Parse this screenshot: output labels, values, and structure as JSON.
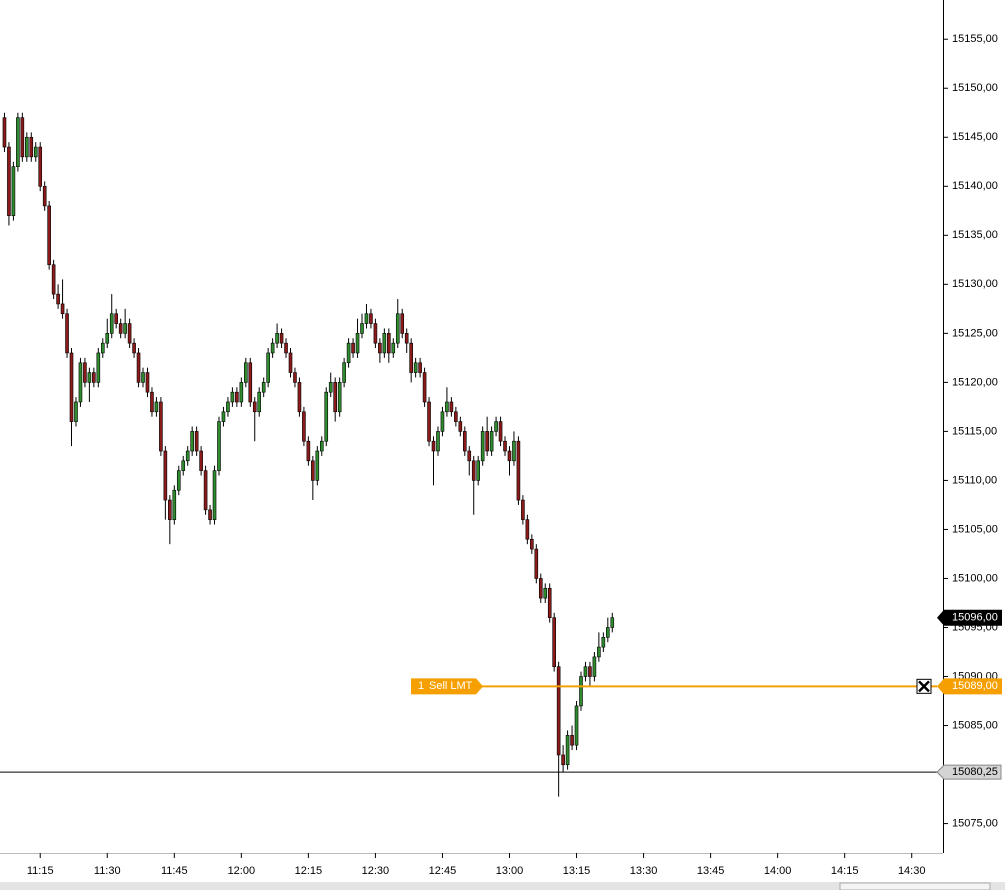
{
  "chart_data": {
    "type": "candlestick",
    "x": [
      "11:07",
      "11:08",
      "11:09",
      "11:10",
      "11:11",
      "11:12",
      "11:13",
      "11:14",
      "11:15",
      "11:16",
      "11:17",
      "11:18",
      "11:19",
      "11:20",
      "11:21",
      "11:22",
      "11:23",
      "11:24",
      "11:25",
      "11:26",
      "11:27",
      "11:28",
      "11:29",
      "11:30",
      "11:31",
      "11:32",
      "11:33",
      "11:34",
      "11:35",
      "11:36",
      "11:37",
      "11:38",
      "11:39",
      "11:40",
      "11:41",
      "11:42",
      "11:43",
      "11:44",
      "11:45",
      "11:46",
      "11:47",
      "11:48",
      "11:49",
      "11:50",
      "11:51",
      "11:52",
      "11:53",
      "11:54",
      "11:55",
      "11:56",
      "11:57",
      "11:58",
      "11:59",
      "12:00",
      "12:01",
      "12:02",
      "12:03",
      "12:04",
      "12:05",
      "12:06",
      "12:07",
      "12:08",
      "12:09",
      "12:10",
      "12:11",
      "12:12",
      "12:13",
      "12:14",
      "12:15",
      "12:16",
      "12:17",
      "12:18",
      "12:19",
      "12:20",
      "12:21",
      "12:22",
      "12:23",
      "12:24",
      "12:25",
      "12:26",
      "12:27",
      "12:28",
      "12:29",
      "12:30",
      "12:31",
      "12:32",
      "12:33",
      "12:34",
      "12:35",
      "12:36",
      "12:37",
      "12:38",
      "12:39",
      "12:40",
      "12:41",
      "12:42",
      "12:43",
      "12:44",
      "12:45",
      "12:46",
      "12:47",
      "12:48",
      "12:49",
      "12:50",
      "12:51",
      "12:52",
      "12:53",
      "12:54",
      "12:55",
      "12:56",
      "12:57",
      "12:58",
      "12:59",
      "13:00",
      "13:01",
      "13:02",
      "13:03",
      "13:04",
      "13:05",
      "13:06",
      "13:07",
      "13:08",
      "13:09",
      "13:10",
      "13:11",
      "13:12",
      "13:13",
      "13:14",
      "13:15",
      "13:16",
      "13:17",
      "13:18",
      "13:19",
      "13:20",
      "13:21",
      "13:22",
      "13:23"
    ],
    "open": [
      15147,
      15144,
      15137,
      15142,
      15147,
      15143,
      15145,
      15143,
      15144,
      15140,
      15138,
      15132,
      15129,
      15128,
      15127,
      15123,
      15116,
      15118,
      15122,
      15120,
      15121,
      15120,
      15123,
      15124,
      15125,
      15127,
      15126,
      15125,
      15126,
      15124,
      15123,
      15120,
      15121,
      15119,
      15117,
      15118,
      15113,
      15108,
      15106,
      15109,
      15111,
      15112,
      15113,
      15115,
      15113,
      15111,
      15107,
      15106,
      15111,
      15116,
      15117,
      15118,
      15119,
      15118,
      15120,
      15122,
      15118,
      15117,
      15119,
      15120,
      15123,
      15124,
      15125,
      15124,
      15123,
      15121,
      15120,
      15117,
      15114,
      15112,
      15110,
      15113,
      15114,
      15119,
      15120,
      15117,
      15120,
      15122,
      15124,
      15123,
      15125,
      15126,
      15127,
      15126,
      15124,
      15123,
      15125,
      15123,
      15124,
      15127,
      15125,
      15124,
      15121,
      15122,
      15121,
      15118,
      15114,
      15113,
      15115,
      15117,
      15118,
      15117,
      15116,
      15115,
      15113,
      15112,
      15110,
      15112,
      15115,
      15113,
      15115,
      15116,
      15114,
      15113,
      15112,
      15114,
      15108,
      15106,
      15104,
      15103,
      15100,
      15098,
      15099,
      15096,
      15091,
      15082,
      15081,
      15084,
      15083,
      15087,
      15090,
      15091,
      15090,
      15092,
      15093,
      15094,
      15095
    ],
    "high": [
      15147.5,
      15144.5,
      15142.5,
      15147.5,
      15147.5,
      15145.5,
      15145.5,
      15144.5,
      15144.5,
      15140.5,
      15138.5,
      15132.5,
      15130,
      15130.5,
      15127.5,
      15123.5,
      15118.5,
      15122.5,
      15122.5,
      15121.5,
      15121.5,
      15123.5,
      15124.5,
      15126.5,
      15129,
      15127.5,
      15126.5,
      15127.5,
      15126.5,
      15124.5,
      15123.5,
      15121.5,
      15121.5,
      15119.5,
      15118.5,
      15118.5,
      15113.5,
      15108.5,
      15109.5,
      15111.5,
      15112.5,
      15113.5,
      15115.5,
      15115.5,
      15113.5,
      15111.5,
      15107.5,
      15111.5,
      15116.5,
      15117.5,
      15118.5,
      15119.5,
      15119.5,
      15120.5,
      15122.5,
      15122.5,
      15118.5,
      15119.5,
      15120.5,
      15123.5,
      15124.5,
      15126,
      15125.5,
      15124.5,
      15123.5,
      15121.5,
      15120.5,
      15117.5,
      15114.5,
      15112.5,
      15113.5,
      15114.5,
      15119.5,
      15121,
      15120.5,
      15120.5,
      15122.5,
      15124.5,
      15124.5,
      15126.5,
      15127,
      15128,
      15127.5,
      15126.5,
      15124.5,
      15125.5,
      15125.5,
      15124.5,
      15128.5,
      15127.5,
      15125.5,
      15124.5,
      15122.5,
      15122.5,
      15121.5,
      15118.5,
      15114.5,
      15115.5,
      15117.5,
      15119.5,
      15118.5,
      15117.5,
      15116.5,
      15115.5,
      15113.5,
      15112.5,
      15112.5,
      15115.5,
      15116.5,
      15115.5,
      15116.5,
      15116.5,
      15114.5,
      15113.5,
      15115,
      15114.5,
      15108.5,
      15106.5,
      15104.5,
      15103.5,
      15100.5,
      15099.5,
      15099.5,
      15096.5,
      15091.5,
      15083,
      15084.5,
      15085,
      15087.5,
      15090.5,
      15091.5,
      15091.5,
      15092.5,
      15094.5,
      15094.5,
      15096,
      15096.5
    ],
    "low": [
      15143.5,
      15136,
      15136.5,
      15141.5,
      15142.5,
      15142.5,
      15142.5,
      15142.5,
      15139.5,
      15137.5,
      15131.5,
      15128.5,
      15127.5,
      15126.5,
      15122.5,
      15113.5,
      15115.5,
      15117.5,
      15119.5,
      15118,
      15119.5,
      15119.5,
      15122.5,
      15123.5,
      15124.5,
      15125.5,
      15124.5,
      15124.5,
      15123.5,
      15122.5,
      15119.5,
      15119.5,
      15118.5,
      15116.5,
      15116.5,
      15112.5,
      15106,
      15103.5,
      15105.5,
      15108.5,
      15110.5,
      15111.5,
      15112.5,
      15112.5,
      15110.5,
      15106.5,
      15105.5,
      15105.5,
      15110.5,
      15115.5,
      15116.5,
      15117.5,
      15117.5,
      15117.5,
      15119.5,
      15117.5,
      15114,
      15116.5,
      15118.5,
      15119.5,
      15122.5,
      15123.5,
      15123.5,
      15122.5,
      15120.5,
      15119.5,
      15116.5,
      15113.5,
      15111.5,
      15108,
      15109.5,
      15112.5,
      15113.5,
      15118.5,
      15116,
      15116.5,
      15119.5,
      15121.5,
      15122.5,
      15122.5,
      15124.5,
      15125.5,
      15125.5,
      15123.5,
      15122,
      15122.5,
      15122,
      15122.5,
      15123.5,
      15124.5,
      15123,
      15120,
      15120.5,
      15120.5,
      15117.5,
      15113.5,
      15109.5,
      15112.5,
      15114.5,
      15116.5,
      15116.5,
      15115.5,
      15114.5,
      15112.5,
      15110.5,
      15106.5,
      15109.5,
      15111.5,
      15112.5,
      15112.5,
      15114.5,
      15113.5,
      15112.5,
      15110.5,
      15111.5,
      15107.5,
      15105.5,
      15103.5,
      15102.5,
      15099.5,
      15097.5,
      15097.5,
      15095.5,
      15090.5,
      15077.75,
      15080.25,
      15080.5,
      15082.5,
      15082.5,
      15086.5,
      15089.5,
      15089,
      15089.5,
      15091.5,
      15092.5,
      15093.5,
      15094.5
    ],
    "close": [
      15144,
      15137,
      15142,
      15147,
      15143,
      15145,
      15143,
      15144,
      15140,
      15138,
      15132,
      15129,
      15128,
      15127,
      15123,
      15116,
      15118,
      15122,
      15120,
      15121,
      15120,
      15123,
      15124,
      15125,
      15127,
      15126,
      15125,
      15126,
      15124,
      15123,
      15120,
      15121,
      15119,
      15117,
      15118,
      15113,
      15108,
      15106,
      15109,
      15111,
      15112,
      15113,
      15115,
      15113,
      15111,
      15107,
      15106,
      15111,
      15116,
      15117,
      15118,
      15119,
      15118,
      15120,
      15122,
      15118,
      15117,
      15119,
      15120,
      15123,
      15124,
      15125,
      15124,
      15123,
      15121,
      15120,
      15117,
      15114,
      15112,
      15110,
      15113,
      15114,
      15119,
      15120,
      15117,
      15120,
      15122,
      15124,
      15123,
      15125,
      15126,
      15127,
      15126,
      15124,
      15123,
      15125,
      15123,
      15124,
      15127,
      15125,
      15124,
      15121,
      15122,
      15121,
      15118,
      15114,
      15113,
      15115,
      15117,
      15118,
      15117,
      15116,
      15115,
      15113,
      15112,
      15110,
      15112,
      15115,
      15113,
      15115,
      15116,
      15114,
      15113,
      15112,
      15114,
      15108,
      15106,
      15104,
      15103,
      15100,
      15098,
      15099,
      15096,
      15091,
      15082,
      15081,
      15084,
      15083,
      15087,
      15090,
      15091,
      15090,
      15092,
      15093,
      15094,
      15095,
      15096
    ],
    "up_color": "#2e8b2e",
    "down_color": "#8b1a1a",
    "xlim": [
      "11:06",
      "14:37"
    ],
    "xticks": [
      "11:15",
      "11:30",
      "11:45",
      "12:00",
      "12:15",
      "12:30",
      "12:45",
      "13:00",
      "13:15",
      "13:30",
      "13:45",
      "14:00",
      "14:15",
      "14:30"
    ],
    "ylim": [
      15072,
      15159
    ],
    "yticks": [
      {
        "value": 15075,
        "label": "15075,00"
      },
      {
        "value": 15080,
        "label": "15080,00"
      },
      {
        "value": 15085,
        "label": "15085,00"
      },
      {
        "value": 15090,
        "label": "15090,00"
      },
      {
        "value": 15095,
        "label": "15095,00"
      },
      {
        "value": 15100,
        "label": "15100,00"
      },
      {
        "value": 15105,
        "label": "15105,00"
      },
      {
        "value": 15110,
        "label": "15110,00"
      },
      {
        "value": 15115,
        "label": "15115,00"
      },
      {
        "value": 15120,
        "label": "15120,00"
      },
      {
        "value": 15125,
        "label": "15125,00"
      },
      {
        "value": 15130,
        "label": "15130,00"
      },
      {
        "value": 15135,
        "label": "15135,00"
      },
      {
        "value": 15140,
        "label": "15140,00"
      },
      {
        "value": 15145,
        "label": "15145,00"
      },
      {
        "value": 15150,
        "label": "15150,00"
      },
      {
        "value": 15155,
        "label": "15155,00"
      }
    ],
    "reference_line": {
      "value": 15080.25,
      "label": "15080,25"
    },
    "order": {
      "quantity": "1",
      "type": "Sell LMT",
      "price": 15089,
      "label": "15089,00",
      "color": "#f5a000"
    },
    "current_price": {
      "value": 15096,
      "label": "15096,00"
    }
  }
}
